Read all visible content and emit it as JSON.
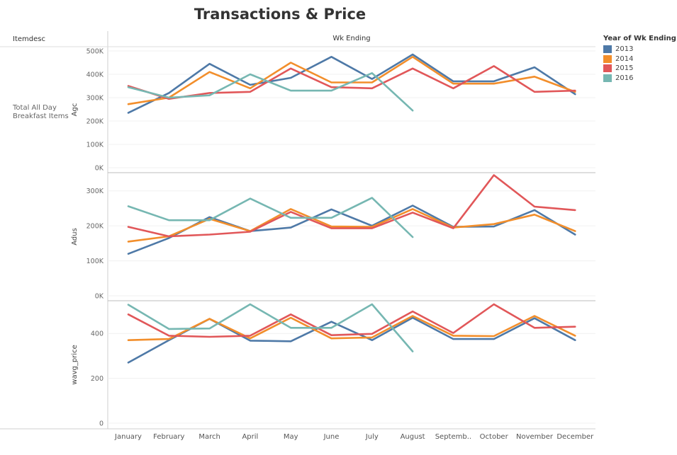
{
  "title": "Transactions & Price",
  "dimension_header": "Itemdesc",
  "row_label": "Total All Day Breakfast Items",
  "column_header": "Wk Ending",
  "legend": {
    "title": "Year of Wk Ending",
    "items": [
      {
        "label": "2013",
        "color": "#4e79a7"
      },
      {
        "label": "2014",
        "color": "#f28e2b"
      },
      {
        "label": "2015",
        "color": "#e15759"
      },
      {
        "label": "2016",
        "color": "#76b7b2"
      }
    ]
  },
  "chart_data": [
    {
      "type": "line",
      "ylabel": "Agc",
      "ylim": [
        0,
        500000
      ],
      "yticks": [
        0,
        100000,
        200000,
        300000,
        400000,
        500000
      ],
      "ytick_labels": [
        "0K",
        "100K",
        "200K",
        "300K",
        "400K",
        "500K"
      ],
      "categories": [
        "January",
        "February",
        "March",
        "April",
        "May",
        "June",
        "July",
        "August",
        "Septemb..",
        "October",
        "November",
        "December"
      ],
      "series": [
        {
          "name": "2013",
          "values": [
            235000,
            320000,
            445000,
            355000,
            385000,
            475000,
            380000,
            485000,
            370000,
            370000,
            430000,
            315000
          ]
        },
        {
          "name": "2014",
          "values": [
            272000,
            300000,
            410000,
            340000,
            450000,
            365000,
            365000,
            475000,
            360000,
            360000,
            390000,
            325000
          ]
        },
        {
          "name": "2015",
          "values": [
            350000,
            295000,
            320000,
            325000,
            425000,
            345000,
            340000,
            425000,
            340000,
            435000,
            325000,
            330000
          ]
        },
        {
          "name": "2016",
          "values": [
            345000,
            300000,
            310000,
            400000,
            330000,
            330000,
            405000,
            245000,
            null,
            null,
            null,
            null
          ]
        }
      ],
      "grid": true
    },
    {
      "type": "line",
      "ylabel": "Adus",
      "ylim": [
        0,
        350000
      ],
      "yticks": [
        0,
        100000,
        200000,
        300000
      ],
      "ytick_labels": [
        "0K",
        "100K",
        "200K",
        "300K"
      ],
      "categories": [
        "January",
        "February",
        "March",
        "April",
        "May",
        "June",
        "July",
        "August",
        "Septemb..",
        "October",
        "November",
        "December"
      ],
      "series": [
        {
          "name": "2013",
          "values": [
            120000,
            165000,
            225000,
            185000,
            195000,
            247000,
            200000,
            258000,
            197000,
            198000,
            245000,
            175000
          ]
        },
        {
          "name": "2014",
          "values": [
            155000,
            170000,
            220000,
            185000,
            248000,
            198000,
            197000,
            248000,
            195000,
            205000,
            232000,
            185000
          ]
        },
        {
          "name": "2015",
          "values": [
            197000,
            170000,
            175000,
            183000,
            240000,
            193000,
            193000,
            238000,
            193000,
            345000,
            255000,
            245000
          ]
        },
        {
          "name": "2016",
          "values": [
            256000,
            216000,
            216000,
            278000,
            223000,
            223000,
            280000,
            168000,
            null,
            null,
            null,
            null
          ]
        }
      ],
      "grid": true
    },
    {
      "type": "line",
      "ylabel": "wavg_price",
      "ylim": [
        0,
        530
      ],
      "yticks": [
        0,
        200,
        400
      ],
      "ytick_labels": [
        "0",
        "200",
        "400"
      ],
      "categories": [
        "January",
        "February",
        "March",
        "April",
        "May",
        "June",
        "July",
        "August",
        "Septemb..",
        "October",
        "November",
        "December"
      ],
      "series": [
        {
          "name": "2013",
          "values": [
            270,
            370,
            465,
            368,
            365,
            452,
            370,
            470,
            375,
            375,
            468,
            370
          ]
        },
        {
          "name": "2014",
          "values": [
            370,
            375,
            465,
            378,
            470,
            378,
            382,
            478,
            390,
            388,
            478,
            390
          ]
        },
        {
          "name": "2015",
          "values": [
            485,
            390,
            385,
            390,
            485,
            392,
            398,
            498,
            402,
            530,
            425,
            430
          ]
        },
        {
          "name": "2016",
          "values": [
            528,
            420,
            422,
            530,
            425,
            425,
            530,
            320,
            null,
            null,
            null,
            null
          ]
        }
      ],
      "grid": true
    }
  ]
}
